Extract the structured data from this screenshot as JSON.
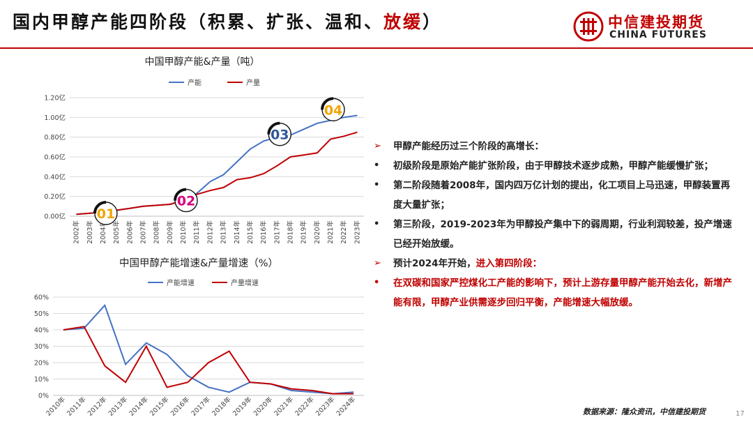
{
  "header": {
    "title_prefix": "国内甲醇产能四阶段（积累、扩张、温和、",
    "title_accent": "放缓",
    "title_suffix": "）"
  },
  "logo": {
    "cn": "中信建投期货",
    "en": "CHINA FUTURES"
  },
  "colors": {
    "accent": "#c00000",
    "capacity": "#4472c4",
    "output": "#c00000"
  },
  "chart_data": [
    {
      "type": "line",
      "title": "中国甲醇产能&产量（吨）",
      "x": [
        "2002年",
        "2003年",
        "2004年",
        "2005年",
        "2006年",
        "2007年",
        "2008年",
        "2009年",
        "2010年",
        "2011年",
        "2012年",
        "2013年",
        "2014年",
        "2015年",
        "2016年",
        "2017年",
        "2018年",
        "2019年",
        "2020年",
        "2021年",
        "2022年",
        "2023年"
      ],
      "series": [
        {
          "name": "产能",
          "color": "#4472c4",
          "values": [
            0.02,
            0.03,
            0.04,
            0.06,
            0.08,
            0.1,
            0.11,
            0.12,
            0.16,
            0.23,
            0.35,
            0.42,
            0.55,
            0.68,
            0.76,
            0.8,
            0.82,
            0.88,
            0.94,
            0.97,
            1.0,
            1.02
          ]
        },
        {
          "name": "产量",
          "color": "#c00000",
          "values": [
            0.02,
            0.03,
            0.04,
            0.06,
            0.08,
            0.1,
            0.11,
            0.12,
            0.16,
            0.22,
            0.26,
            0.29,
            0.37,
            0.39,
            0.43,
            0.51,
            0.6,
            0.62,
            0.64,
            0.78,
            0.81,
            0.85
          ]
        }
      ],
      "y_ticks": [
        "0.00亿",
        "0.20亿",
        "0.40亿",
        "0.60亿",
        "0.80亿",
        "1.00亿",
        "1.20亿"
      ],
      "ylim": [
        0,
        1.2
      ],
      "grid": "horizontal",
      "legend": "top",
      "stage_markers": [
        {
          "label": "01",
          "x": "2004年",
          "y": 0.0,
          "color": "#f0a500"
        },
        {
          "label": "02",
          "x": "2010年",
          "y": 0.13,
          "color": "#d4007f"
        },
        {
          "label": "03",
          "x": "2017年",
          "y": 0.8,
          "color": "#2f5597"
        },
        {
          "label": "04",
          "x": "2021年",
          "y": 1.05,
          "color": "#f0a500"
        }
      ]
    },
    {
      "type": "line",
      "title": "中国甲醇产能增速&产量增速（%）",
      "x": [
        "2010年",
        "2011年",
        "2012年",
        "2013年",
        "2014年",
        "2015年",
        "2016年",
        "2017年",
        "2018年",
        "2019年",
        "2020年",
        "2021年",
        "2022年",
        "2023年",
        "2024年"
      ],
      "series": [
        {
          "name": "产能增速",
          "color": "#4472c4",
          "values": [
            40,
            41,
            55,
            19,
            32,
            25,
            12,
            5,
            2,
            8,
            7,
            3,
            2,
            1,
            2
          ]
        },
        {
          "name": "产量增速",
          "color": "#c00000",
          "values": [
            40,
            42,
            18,
            8,
            30,
            5,
            8,
            20,
            27,
            8,
            7,
            4,
            3,
            1,
            1
          ]
        }
      ],
      "y_ticks": [
        "0%",
        "10%",
        "20%",
        "30%",
        "40%",
        "50%",
        "60%"
      ],
      "ylim": [
        0,
        60
      ],
      "grid": "horizontal",
      "legend": "top"
    }
  ],
  "bullets": [
    {
      "mark": "➢",
      "text": "甲醇产能经历过三个阶段的高增长：",
      "red": false
    },
    {
      "mark": "•",
      "text": "初级阶段是原始产能扩张阶段，由于甲醇技术逐步成熟，甲醇产能缓慢扩张；",
      "red": false
    },
    {
      "mark": "•",
      "text": "第二阶段随着2008年，国内四万亿计划的提出，化工项目上马迅速，甲醇装置再度大量扩张；",
      "red": false
    },
    {
      "mark": "•",
      "text": "第三阶段，2019-2023年为甲醇投产集中下的弱周期，行业利润较差，投产增速已经开始放缓。",
      "red": false
    },
    {
      "mark": "➢",
      "text": "预计2024年开始，进入第四阶段：",
      "red": false,
      "accent_part": "进入第四阶段：",
      "plain_part": "预计2024年开始，"
    },
    {
      "mark": "•",
      "text": "在双碳和国家严控煤化工产能的影响下，预计上游存量甲醇产能开始去化，新增产能有限，甲醇产业供需逐步回归平衡，产能增速大幅放缓。",
      "red": true
    }
  ],
  "footer": {
    "source": "数据来源：隆众资讯，中信建投期货",
    "page": "17"
  }
}
